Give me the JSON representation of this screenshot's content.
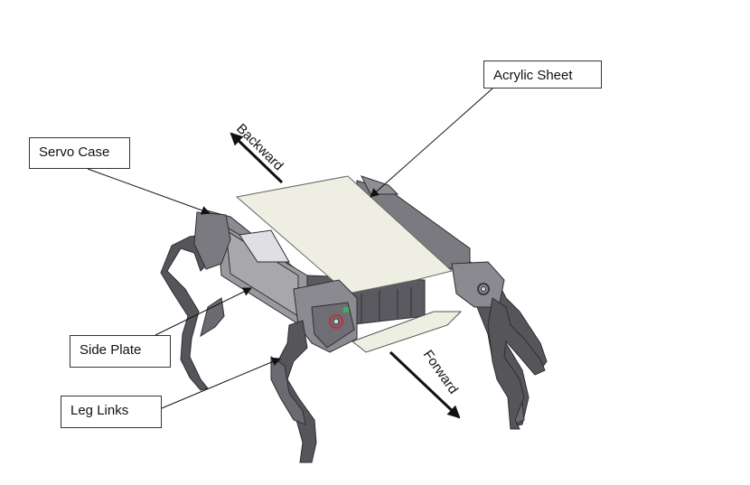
{
  "labels": {
    "acrylic_sheet": "Acrylic Sheet",
    "servo_case": "Servo Case",
    "side_plate": "Side Plate",
    "leg_links": "Leg Links"
  },
  "directions": {
    "backward": "Backward",
    "forward": "Forward"
  },
  "colors": {
    "acrylic_sheet": "#efeee2",
    "body_metal": "#9a9a9e",
    "leg_dark": "#4a4a4e",
    "arrow": "#111111"
  }
}
